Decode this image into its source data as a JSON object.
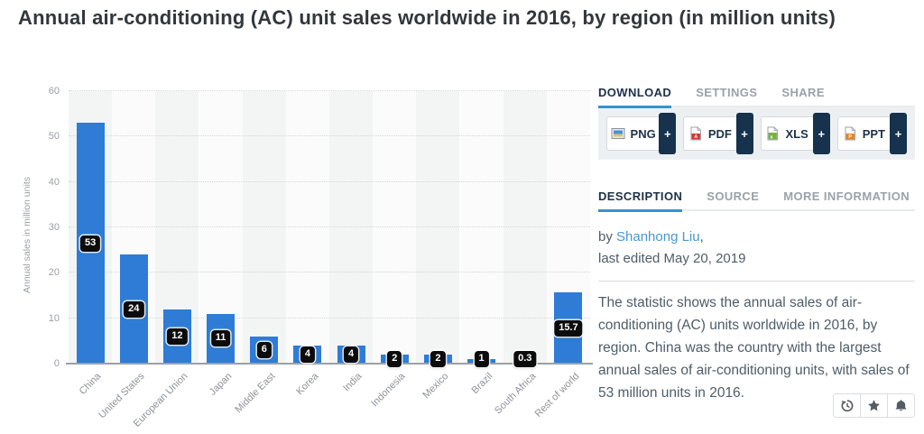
{
  "page": {
    "title": "Annual air-conditioning (AC) unit sales worldwide in 2016, by region (in million units)"
  },
  "chart_data": {
    "type": "bar",
    "categories": [
      "China",
      "United States",
      "European Union",
      "Japan",
      "Middle East",
      "Korea",
      "India",
      "Indonesia",
      "Mexico",
      "Brazil",
      "South Africa",
      "Rest of world"
    ],
    "values": [
      53,
      24,
      12,
      11,
      6,
      4,
      4,
      2,
      2,
      1,
      0.3,
      15.7
    ],
    "value_labels": [
      "53",
      "24",
      "12",
      "11",
      "6",
      "4",
      "4",
      "2",
      "2",
      "1",
      "0.3",
      "15.7"
    ],
    "title": "",
    "xlabel": "",
    "ylabel": "Annual sales in million units",
    "ylim": [
      0,
      60
    ],
    "ytick_step": 10,
    "grid": true,
    "legend": false,
    "bar_color": "#2e7cd6",
    "badge_color": "#0c0c0c",
    "stripe_colors": [
      "#f3f4f4",
      "#fbfbfb"
    ]
  },
  "panel": {
    "tabs_top": [
      {
        "label": "DOWNLOAD",
        "active": true
      },
      {
        "label": "SETTINGS",
        "active": false
      },
      {
        "label": "SHARE",
        "active": false
      }
    ],
    "downloads": [
      {
        "label": "PNG",
        "plus": "+"
      },
      {
        "label": "PDF",
        "plus": "+"
      },
      {
        "label": "XLS",
        "plus": "+"
      },
      {
        "label": "PPT",
        "plus": "+"
      }
    ],
    "tabs_info": [
      {
        "label": "DESCRIPTION",
        "active": true
      },
      {
        "label": "SOURCE",
        "active": false
      },
      {
        "label": "MORE INFORMATION",
        "active": false
      }
    ],
    "byline": {
      "prefix": "by ",
      "author": "Shanhong Liu",
      "suffix": ","
    },
    "last_edited": "last edited May 20, 2019",
    "description": "The statistic shows the annual sales of air-conditioning (AC) units worldwide in 2016, by region. China was the country with the largest annual sales of air-conditioning units, with sales of 53 million units in 2016.",
    "colors": {
      "accent_blue": "#3494d0",
      "navy": "#16324c",
      "link": "#4697d2"
    }
  }
}
